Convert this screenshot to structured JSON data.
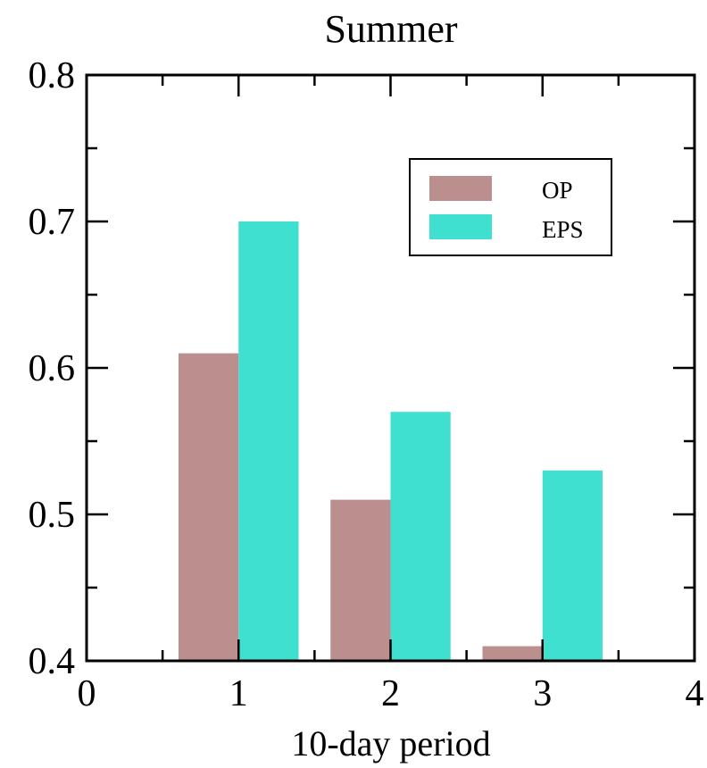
{
  "chart_data": {
    "type": "bar",
    "title": "Summer",
    "xlabel": "10-day period",
    "ylabel": "",
    "x": [
      1,
      2,
      3
    ],
    "series": [
      {
        "name": "OP",
        "values": [
          0.61,
          0.51,
          0.41
        ],
        "color": "#BC8F8F"
      },
      {
        "name": "EPS",
        "values": [
          0.7,
          0.57,
          0.53
        ],
        "color": "#40E0D0"
      }
    ],
    "xlim": [
      0,
      4
    ],
    "ylim": [
      0.4,
      0.8
    ],
    "x_ticks": [
      "0",
      "1",
      "2",
      "3",
      "4"
    ],
    "y_ticks": [
      "0.4",
      "0.5",
      "0.6",
      "0.7",
      "0.8"
    ],
    "grid": false,
    "legend_position": "top-right"
  }
}
